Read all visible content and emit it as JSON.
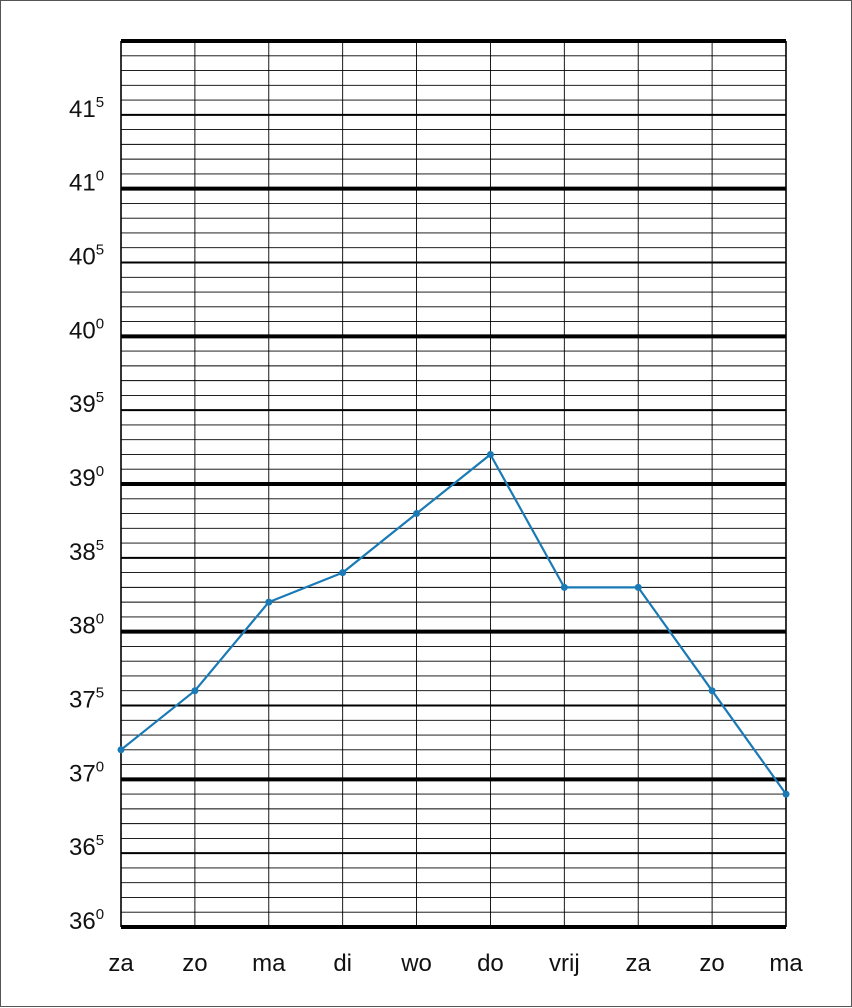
{
  "chart_data": {
    "type": "line",
    "title": "",
    "xlabel": "",
    "ylabel": "",
    "categories": [
      "za",
      "zo",
      "ma",
      "di",
      "wo",
      "do",
      "vrij",
      "za",
      "zo",
      "ma"
    ],
    "series": [
      {
        "values": [
          37.2,
          37.6,
          38.2,
          38.4,
          38.8,
          39.2,
          38.3,
          38.3,
          37.6,
          36.9
        ]
      }
    ],
    "ylim": [
      36.0,
      42.0
    ],
    "y_ticks": [
      {
        "value": 36.0,
        "base": "36",
        "sup": "0"
      },
      {
        "value": 36.5,
        "base": "36",
        "sup": "5"
      },
      {
        "value": 37.0,
        "base": "37",
        "sup": "0"
      },
      {
        "value": 37.5,
        "base": "37",
        "sup": "5"
      },
      {
        "value": 38.0,
        "base": "38",
        "sup": "0"
      },
      {
        "value": 38.5,
        "base": "38",
        "sup": "5"
      },
      {
        "value": 39.0,
        "base": "39",
        "sup": "0"
      },
      {
        "value": 39.5,
        "base": "39",
        "sup": "5"
      },
      {
        "value": 40.0,
        "base": "40",
        "sup": "0"
      },
      {
        "value": 40.5,
        "base": "40",
        "sup": "5"
      },
      {
        "value": 41.0,
        "base": "41",
        "sup": "0"
      },
      {
        "value": 41.5,
        "base": "41",
        "sup": "5"
      }
    ],
    "minor_step": 0.1,
    "grid": true,
    "line_color": "#1a7ab5",
    "grid_color": "#000000"
  }
}
